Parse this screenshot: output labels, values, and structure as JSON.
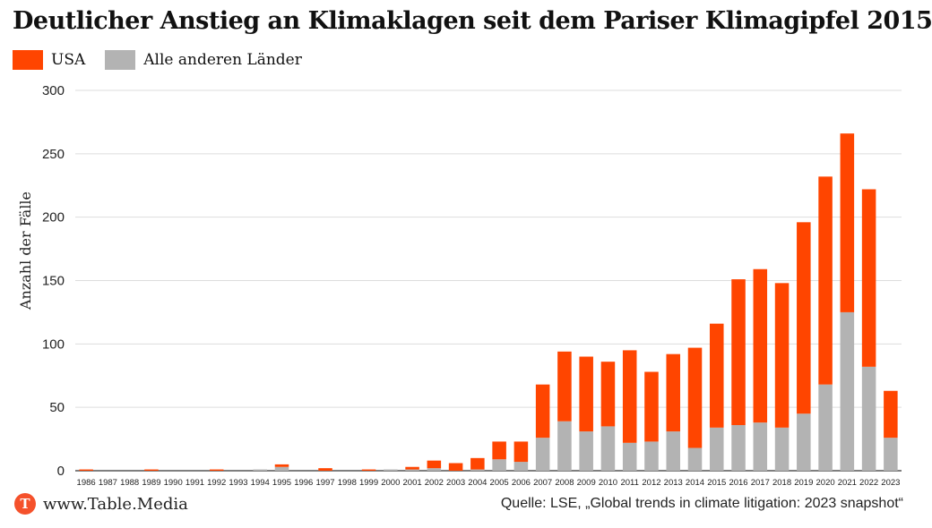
{
  "title": "Deutlicher Anstieg an Klimaklagen seit dem Pariser Klimagipfel 2015",
  "colors": {
    "usa": "#ff4500",
    "others": "#b3b3b3",
    "grid": "#dddddd",
    "logo": "#f5512b"
  },
  "footer": {
    "logo_letter": "T",
    "brand": "www.Table.Media",
    "source": "Quelle: LSE, „Global trends in climate litigation: 2023 snapshot“"
  },
  "chart_data": {
    "type": "bar",
    "stacked": true,
    "title": "Deutlicher Anstieg an Klimaklagen seit dem Pariser Klimagipfel 2015",
    "ylabel": "Anzahl der Fälle",
    "xlabel": "",
    "ylim": [
      0,
      300
    ],
    "yticks": [
      0,
      50,
      100,
      150,
      200,
      250,
      300
    ],
    "grid": true,
    "legend_position": "top-left",
    "categories": [
      "1986",
      "1987",
      "1988",
      "1989",
      "1990",
      "1991",
      "1992",
      "1993",
      "1994",
      "1995",
      "1996",
      "1997",
      "1998",
      "1999",
      "2000",
      "2001",
      "2002",
      "2003",
      "2004",
      "2005",
      "2006",
      "2007",
      "2008",
      "2009",
      "2010",
      "2011",
      "2012",
      "2013",
      "2014",
      "2015",
      "2016",
      "2017",
      "2018",
      "2019",
      "2020",
      "2021",
      "2022",
      "2023"
    ],
    "series": [
      {
        "name": "Alle anderen Länder",
        "color": "#b3b3b3",
        "values": [
          0,
          0,
          0,
          0,
          0,
          0,
          0,
          0,
          1,
          3,
          0,
          0,
          0,
          0,
          1,
          1,
          2,
          0,
          1,
          9,
          7,
          26,
          39,
          31,
          35,
          22,
          23,
          31,
          18,
          34,
          36,
          38,
          34,
          45,
          68,
          125,
          82,
          26
        ]
      },
      {
        "name": "USA",
        "color": "#ff4500",
        "values": [
          1,
          0,
          0,
          1,
          0,
          0,
          1,
          0,
          0,
          2,
          0,
          2,
          0,
          1,
          0,
          2,
          6,
          6,
          9,
          14,
          16,
          42,
          55,
          59,
          51,
          73,
          55,
          61,
          79,
          82,
          115,
          121,
          114,
          151,
          164,
          141,
          140,
          37
        ]
      }
    ]
  }
}
